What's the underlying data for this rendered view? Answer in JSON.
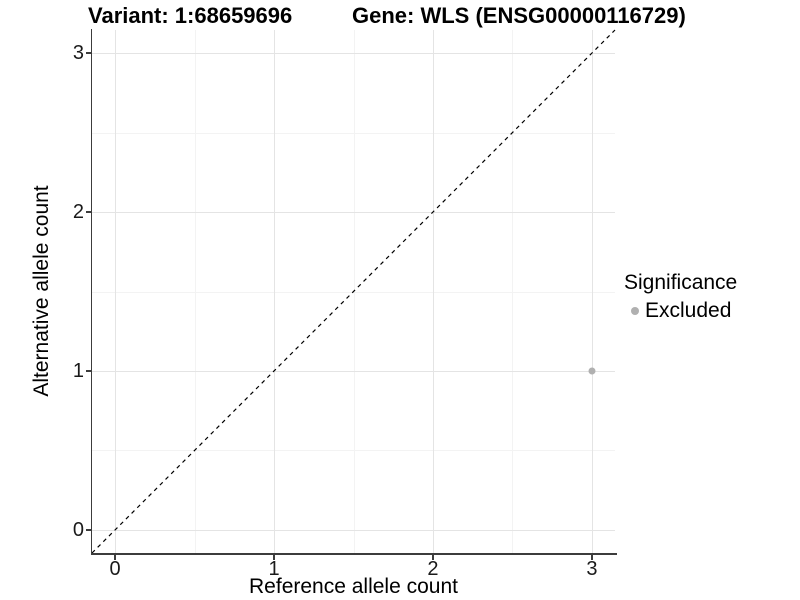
{
  "titles": {
    "variant": "Variant: 1:68659696",
    "gene": "Gene: WLS (ENSG00000116729)"
  },
  "axes": {
    "x": {
      "label": "Reference allele count",
      "ticks": [
        {
          "value": 0,
          "label": "0"
        },
        {
          "value": 1,
          "label": "1"
        },
        {
          "value": 2,
          "label": "2"
        },
        {
          "value": 3,
          "label": "3"
        }
      ],
      "minor_ticks": [
        0.5,
        1.5,
        2.5
      ],
      "range": [
        -0.145,
        3.145
      ]
    },
    "y": {
      "label": "Alternative allele count",
      "ticks": [
        {
          "value": 0,
          "label": "0"
        },
        {
          "value": 1,
          "label": "1"
        },
        {
          "value": 2,
          "label": "2"
        },
        {
          "value": 3,
          "label": "3"
        }
      ],
      "minor_ticks": [
        0.5,
        1.5,
        2.5
      ],
      "range": [
        -0.145,
        3.145
      ]
    }
  },
  "legend": {
    "title": "Significance",
    "items": [
      {
        "label": "Excluded",
        "color": "#b0b0b0"
      }
    ]
  },
  "chart_data": {
    "type": "scatter",
    "title": "Variant: 1:68659696 | Gene: WLS (ENSG00000116729)",
    "xlabel": "Reference allele count",
    "ylabel": "Alternative allele count",
    "xlim": [
      -0.145,
      3.145
    ],
    "ylim": [
      -0.145,
      3.145
    ],
    "x_ticks": [
      0,
      1,
      2,
      3
    ],
    "y_ticks": [
      0,
      1,
      2,
      3
    ],
    "grid": true,
    "legend_position": "right",
    "series": [
      {
        "name": "Excluded",
        "color": "#b0b0b0",
        "points": [
          {
            "x": 3,
            "y": 1
          }
        ]
      }
    ],
    "reference_line": {
      "equation": "y = x",
      "style": "dashed",
      "color": "#000000",
      "from": -0.145,
      "to": 3.145
    }
  },
  "colors": {
    "major_grid": "#e4e4e4",
    "minor_grid": "#f3f3f3",
    "axis_line": "#3c3c3c",
    "background": "#ffffff"
  }
}
